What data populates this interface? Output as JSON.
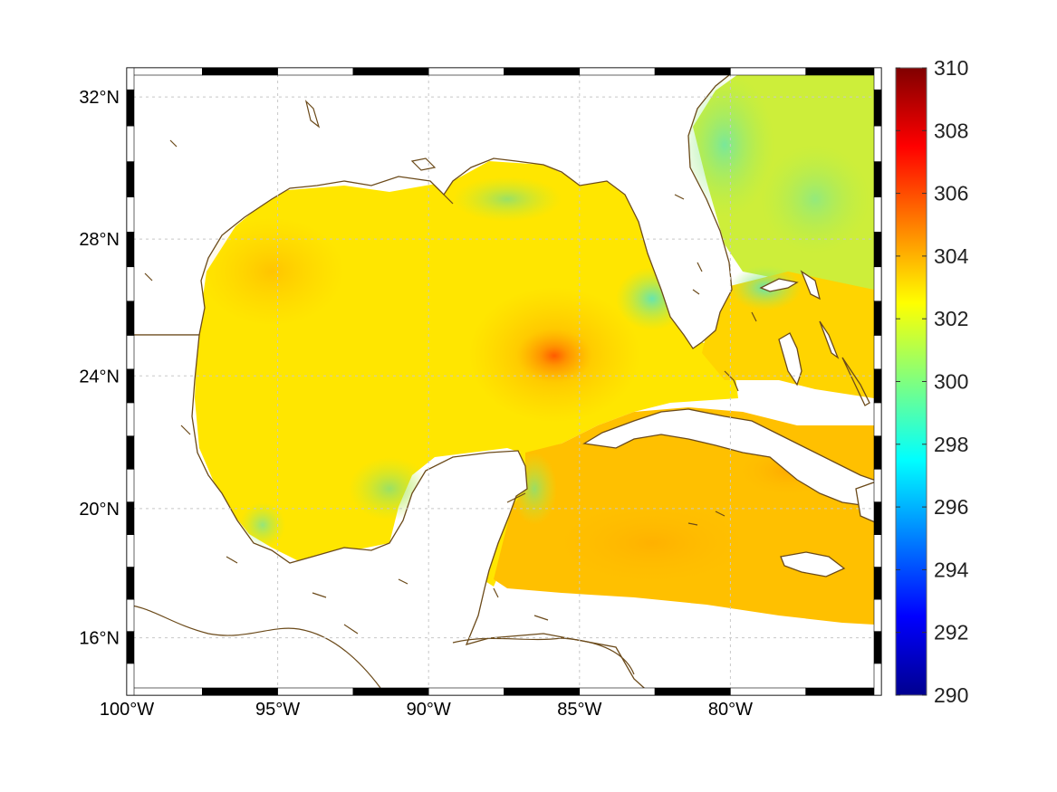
{
  "map": {
    "projection": "mercator",
    "lon_range": [
      -100,
      -75
    ],
    "lat_range": [
      14.2,
      32.8
    ],
    "graticule": "dashed gray",
    "land_fill": "#ffffff",
    "coastline_color": "#6b4a1a",
    "field_colormap": "jet",
    "lon_ticks": [
      {
        "value": -100,
        "label": "100°W"
      },
      {
        "value": -95,
        "label": "95°W"
      },
      {
        "value": -90,
        "label": "90°W"
      },
      {
        "value": -85,
        "label": "85°W"
      },
      {
        "value": -80,
        "label": "80°W"
      }
    ],
    "lat_ticks": [
      {
        "value": 32,
        "label": "32°N"
      },
      {
        "value": 28,
        "label": "28°N"
      },
      {
        "value": 24,
        "label": "24°N"
      },
      {
        "value": 20,
        "label": "20°N"
      },
      {
        "value": 16,
        "label": "16°N"
      }
    ]
  },
  "colorbar": {
    "min": 290,
    "max": 310,
    "tick_labels": [
      "310",
      "308",
      "306",
      "304",
      "302",
      "300",
      "298",
      "296",
      "294",
      "292",
      "290"
    ]
  }
}
